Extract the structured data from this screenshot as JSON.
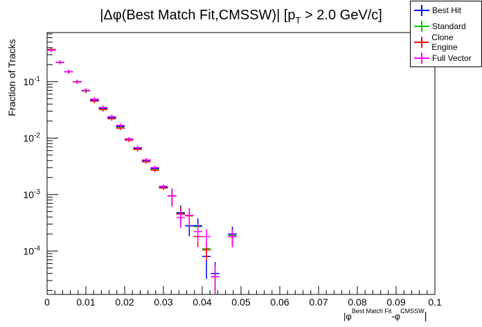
{
  "chart_data": {
    "type": "scatter",
    "title": "|Δφ(Best Match Fit,CMSSW)| [p_T > 2.0 GeV/c]",
    "title_main": "|Δφ(Best Match Fit,CMSSW)| [p",
    "title_sub": "T",
    "title_tail": " > 2.0 GeV/c]",
    "xlabel_parts": [
      "|φ",
      "Best Match Fit",
      "-φ",
      "CMSSW",
      "|"
    ],
    "ylabel": "Fraction of Tracks",
    "xlim": [
      0,
      0.1
    ],
    "ylim": [
      1.7e-05,
      0.74
    ],
    "yscale": "log",
    "bin_width": 0.002222,
    "x_ticks": [
      "0",
      "0.01",
      "0.02",
      "0.03",
      "0.04",
      "0.05",
      "0.06",
      "0.07",
      "0.08",
      "0.09",
      "0.1"
    ],
    "y_ticks": [
      {
        "base": "10",
        "exp": "-1",
        "value": 0.1
      },
      {
        "base": "10",
        "exp": "-2",
        "value": 0.01
      },
      {
        "base": "10",
        "exp": "-3",
        "value": 0.001
      },
      {
        "base": "10",
        "exp": "-4",
        "value": 0.0001
      }
    ],
    "legend_position": "top-right",
    "series": [
      {
        "name": "Standard",
        "color": "#00cc00",
        "values": [
          0.37,
          0.22,
          0.15,
          0.1,
          0.068,
          0.047,
          0.033,
          0.023,
          0.0155,
          0.0094,
          0.0065,
          0.0039,
          0.0028,
          0.00135,
          0.00095,
          0.00048,
          0.00042,
          0.00027,
          0.00011,
          3.5e-05,
          null,
          0.00019
        ]
      },
      {
        "name": "Best Hit",
        "color": "#0000ff",
        "values": [
          0.37,
          0.22,
          0.15,
          0.1,
          0.07,
          0.047,
          0.034,
          0.023,
          0.0162,
          0.0094,
          0.0066,
          0.004,
          0.0029,
          0.00135,
          0.00095,
          0.00047,
          0.00028,
          0.00028,
          8e-05,
          4e-05,
          null,
          0.0002
        ]
      },
      {
        "name": "Clone Engine",
        "color": "#ff0000",
        "values": [
          0.37,
          0.22,
          0.15,
          0.099,
          0.069,
          0.045,
          0.032,
          0.022,
          0.015,
          0.0092,
          0.0063,
          0.0038,
          0.0027,
          0.0013,
          0.00094,
          0.00045,
          0.00042,
          0.00018,
          0.000105,
          3.5e-05,
          null,
          0.00018
        ]
      },
      {
        "name": "Full Vector",
        "color": "#ff00ff",
        "values": [
          0.36,
          0.22,
          0.15,
          0.1,
          0.07,
          0.049,
          0.035,
          0.024,
          0.0168,
          0.0097,
          0.0068,
          0.0041,
          0.003,
          0.0014,
          0.00095,
          0.00039,
          0.00043,
          0.00022,
          0.00018,
          3.5e-05,
          null,
          0.00018
        ]
      }
    ]
  }
}
